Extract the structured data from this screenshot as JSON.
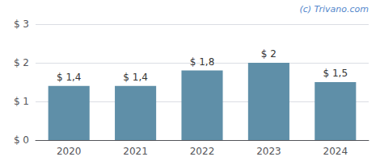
{
  "chart_data": {
    "type": "bar",
    "categories": [
      "2020",
      "2021",
      "2022",
      "2023",
      "2024"
    ],
    "values": [
      1.4,
      1.4,
      1.8,
      2.0,
      1.5
    ],
    "value_labels": [
      "$ 1,4",
      "$ 1,4",
      "$ 1,8",
      "$ 2",
      "$ 1,5"
    ],
    "data_labels": true,
    "color": "#5f8fa8",
    "ylim": [
      0,
      3.0
    ],
    "yticks": [
      {
        "value": 0,
        "label": "$ 0"
      },
      {
        "value": 1,
        "label": "$ 1"
      },
      {
        "value": 2,
        "label": "$ 2"
      },
      {
        "value": 3,
        "label": "$ 3"
      }
    ],
    "grid": true,
    "annotations": [
      {
        "text": "(c) Trivano.com",
        "color": "#5588cc"
      }
    ]
  }
}
